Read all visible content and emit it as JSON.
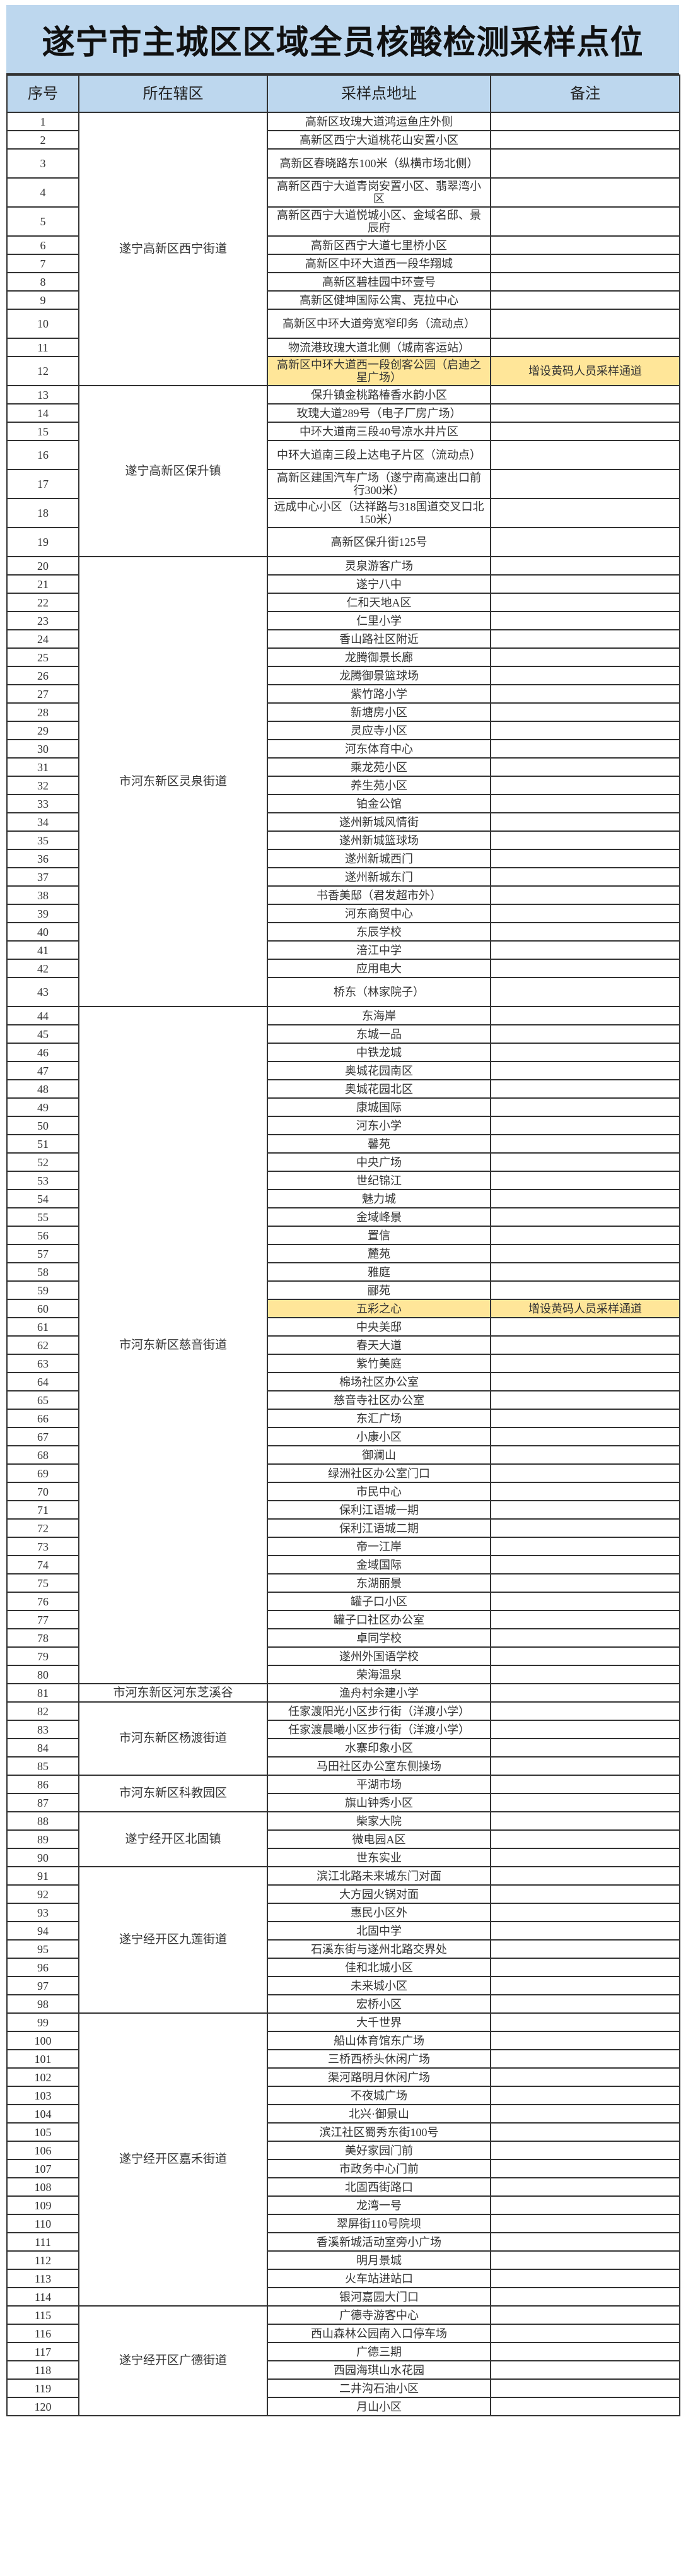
{
  "title": "遂宁市主城区区域全员核酸检测采样点位",
  "headers": [
    "序号",
    "所在辖区",
    "采样点地址",
    "备注"
  ],
  "highlight_color": "#ffe699",
  "header_color": "#bdd7ee",
  "groups": [
    {
      "district": "遂宁高新区西宁街道",
      "rows": [
        {
          "no": "1",
          "address": "高新区玫瑰大道鸿运鱼庄外侧"
        },
        {
          "no": "2",
          "address": "高新区西宁大道桃花山安置小区"
        },
        {
          "no": "3",
          "address": "高新区春晓路东100米（纵横市场北侧）",
          "tall": true
        },
        {
          "no": "4",
          "address": "高新区西宁大道青岗安置小区、翡翠湾小区",
          "tall": true
        },
        {
          "no": "5",
          "address": "高新区西宁大道悦城小区、金域名邸、景辰府",
          "tall": true
        },
        {
          "no": "6",
          "address": "高新区西宁大道七里桥小区"
        },
        {
          "no": "7",
          "address": "高新区中环大道西一段华翔城"
        },
        {
          "no": "8",
          "address": "高新区碧桂园中环壹号"
        },
        {
          "no": "9",
          "address": "高新区健坤国际公寓、克拉中心"
        },
        {
          "no": "10",
          "address": "高新区中环大道旁宽窄印务（流动点）",
          "tall": true
        },
        {
          "no": "11",
          "address": "物流港玫瑰大道北侧（城南客运站）"
        },
        {
          "no": "12",
          "address": "高新区中环大道西一段创客公园（启迪之星广场）",
          "note": "增设黄码人员采样通道",
          "highlight": true,
          "tall": true
        }
      ]
    },
    {
      "district": "遂宁高新区保升镇",
      "rows": [
        {
          "no": "13",
          "address": "保升镇金桃路椿香水韵小区"
        },
        {
          "no": "14",
          "address": "玫瑰大道289号（电子厂房广场）"
        },
        {
          "no": "15",
          "address": "中环大道南三段40号凉水井片区"
        },
        {
          "no": "16",
          "address": "中环大道南三段上达电子片区（流动点）",
          "tall": true
        },
        {
          "no": "17",
          "address": "高新区建国汽车广场（遂宁南高速出口前行300米）",
          "tall": true
        },
        {
          "no": "18",
          "address": "远成中心小区（达祥路与318国道交叉口北150米）",
          "tall": true
        },
        {
          "no": "19",
          "address": "高新区保升街125号",
          "tall": true
        }
      ]
    },
    {
      "district": "市河东新区灵泉街道",
      "rows": [
        {
          "no": "20",
          "address": "灵泉游客广场"
        },
        {
          "no": "21",
          "address": "遂宁八中"
        },
        {
          "no": "22",
          "address": "仁和天地A区"
        },
        {
          "no": "23",
          "address": "仁里小学"
        },
        {
          "no": "24",
          "address": "香山路社区附近"
        },
        {
          "no": "25",
          "address": "龙腾御景长廊"
        },
        {
          "no": "26",
          "address": "龙腾御景篮球场"
        },
        {
          "no": "27",
          "address": "紫竹路小学"
        },
        {
          "no": "28",
          "address": "新塘房小区"
        },
        {
          "no": "29",
          "address": "灵应寺小区"
        },
        {
          "no": "30",
          "address": "河东体育中心"
        },
        {
          "no": "31",
          "address": "乘龙苑小区"
        },
        {
          "no": "32",
          "address": "养生苑小区"
        },
        {
          "no": "33",
          "address": "铂金公馆"
        },
        {
          "no": "34",
          "address": "遂州新城风情街"
        },
        {
          "no": "35",
          "address": "遂州新城篮球场"
        },
        {
          "no": "36",
          "address": "遂州新城西门"
        },
        {
          "no": "37",
          "address": "遂州新城东门"
        },
        {
          "no": "38",
          "address": "书香美邸（君发超市外）"
        },
        {
          "no": "39",
          "address": "河东商贸中心"
        },
        {
          "no": "40",
          "address": "东辰学校"
        },
        {
          "no": "41",
          "address": "涪江中学"
        },
        {
          "no": "42",
          "address": "应用电大"
        },
        {
          "no": "43",
          "address": "桥东（林家院子）",
          "tall": true
        }
      ]
    },
    {
      "district": "市河东新区慈音街道",
      "rows": [
        {
          "no": "44",
          "address": "东海岸"
        },
        {
          "no": "45",
          "address": "东城一品"
        },
        {
          "no": "46",
          "address": "中铁龙城"
        },
        {
          "no": "47",
          "address": "奥城花园南区"
        },
        {
          "no": "48",
          "address": "奥城花园北区"
        },
        {
          "no": "49",
          "address": "康城国际"
        },
        {
          "no": "50",
          "address": "河东小学"
        },
        {
          "no": "51",
          "address": "馨苑"
        },
        {
          "no": "52",
          "address": "中央广场"
        },
        {
          "no": "53",
          "address": "世纪锦江"
        },
        {
          "no": "54",
          "address": "魅力城"
        },
        {
          "no": "55",
          "address": "金域峰景"
        },
        {
          "no": "56",
          "address": "置信"
        },
        {
          "no": "57",
          "address": "麓苑"
        },
        {
          "no": "58",
          "address": "雅庭"
        },
        {
          "no": "59",
          "address": "郦苑"
        },
        {
          "no": "60",
          "address": "五彩之心",
          "note": "增设黄码人员采样通道",
          "highlight": true
        },
        {
          "no": "61",
          "address": "中央美邸"
        },
        {
          "no": "62",
          "address": "春天大道"
        },
        {
          "no": "63",
          "address": "紫竹美庭"
        },
        {
          "no": "64",
          "address": "棉场社区办公室"
        },
        {
          "no": "65",
          "address": "慈音寺社区办公室"
        },
        {
          "no": "66",
          "address": "东汇广场"
        },
        {
          "no": "67",
          "address": "小康小区"
        },
        {
          "no": "68",
          "address": "御澜山"
        },
        {
          "no": "69",
          "address": "绿洲社区办公室门口"
        },
        {
          "no": "70",
          "address": "市民中心"
        },
        {
          "no": "71",
          "address": "保利江语城一期"
        },
        {
          "no": "72",
          "address": "保利江语城二期"
        },
        {
          "no": "73",
          "address": "帝一江岸"
        },
        {
          "no": "74",
          "address": "金域国际"
        },
        {
          "no": "75",
          "address": "东湖丽景"
        },
        {
          "no": "76",
          "address": "罐子口小区"
        },
        {
          "no": "77",
          "address": "罐子口社区办公室"
        },
        {
          "no": "78",
          "address": "卓同学校"
        },
        {
          "no": "79",
          "address": "遂州外国语学校"
        },
        {
          "no": "80",
          "address": "荣海温泉"
        }
      ]
    },
    {
      "district": "市河东新区河东芝溪谷",
      "rows": [
        {
          "no": "81",
          "address": "渔舟村余建小学"
        }
      ]
    },
    {
      "district": "市河东新区杨渡街道",
      "rows": [
        {
          "no": "82",
          "address": "任家渡阳光小区步行街（洋渡小学）"
        },
        {
          "no": "83",
          "address": "任家渡晨曦小区步行街（洋渡小学）"
        },
        {
          "no": "84",
          "address": "水寨印象小区"
        },
        {
          "no": "85",
          "address": "马田社区办公室东侧操场"
        }
      ]
    },
    {
      "district": "市河东新区科教园区",
      "rows": [
        {
          "no": "86",
          "address": "平湖市场"
        },
        {
          "no": "87",
          "address": "旗山钟秀小区"
        }
      ]
    },
    {
      "district": "遂宁经开区北固镇",
      "rows": [
        {
          "no": "88",
          "address": "柴家大院"
        },
        {
          "no": "89",
          "address": "微电园A区"
        },
        {
          "no": "90",
          "address": "世东实业"
        }
      ]
    },
    {
      "district": "遂宁经开区九莲街道",
      "rows": [
        {
          "no": "91",
          "address": "滨江北路未来城东门对面"
        },
        {
          "no": "92",
          "address": "大方园火锅对面"
        },
        {
          "no": "93",
          "address": "惠民小区外"
        },
        {
          "no": "94",
          "address": "北固中学"
        },
        {
          "no": "95",
          "address": "石溪东街与遂州北路交界处"
        },
        {
          "no": "96",
          "address": "佳和北城小区"
        },
        {
          "no": "97",
          "address": "未来城小区"
        },
        {
          "no": "98",
          "address": "宏桥小区"
        }
      ]
    },
    {
      "district": "遂宁经开区嘉禾街道",
      "rows": [
        {
          "no": "99",
          "address": "大千世界"
        },
        {
          "no": "100",
          "address": "船山体育馆东广场"
        },
        {
          "no": "101",
          "address": "三桥西桥头休闲广场"
        },
        {
          "no": "102",
          "address": "渠河路明月休闲广场"
        },
        {
          "no": "103",
          "address": "不夜城广场"
        },
        {
          "no": "104",
          "address": "北兴·御景山"
        },
        {
          "no": "105",
          "address": "滨江社区蜀秀东街100号"
        },
        {
          "no": "106",
          "address": "美好家园门前"
        },
        {
          "no": "107",
          "address": "市政务中心门前"
        },
        {
          "no": "108",
          "address": "北固西街路口"
        },
        {
          "no": "109",
          "address": "龙湾一号"
        },
        {
          "no": "110",
          "address": "翠屏街110号院坝"
        },
        {
          "no": "111",
          "address": "香溪新城活动室旁小广场"
        },
        {
          "no": "112",
          "address": "明月景城"
        },
        {
          "no": "113",
          "address": "火车站进站口"
        },
        {
          "no": "114",
          "address": "银河嘉园大门口"
        }
      ]
    },
    {
      "district": "遂宁经开区广德街道",
      "rows": [
        {
          "no": "115",
          "address": "广德寺游客中心"
        },
        {
          "no": "116",
          "address": "西山森林公园南入口停车场"
        },
        {
          "no": "117",
          "address": "广德三期"
        },
        {
          "no": "118",
          "address": "西园海琪山水花园"
        },
        {
          "no": "119",
          "address": "二井沟石油小区"
        },
        {
          "no": "120",
          "address": "月山小区"
        }
      ]
    }
  ]
}
